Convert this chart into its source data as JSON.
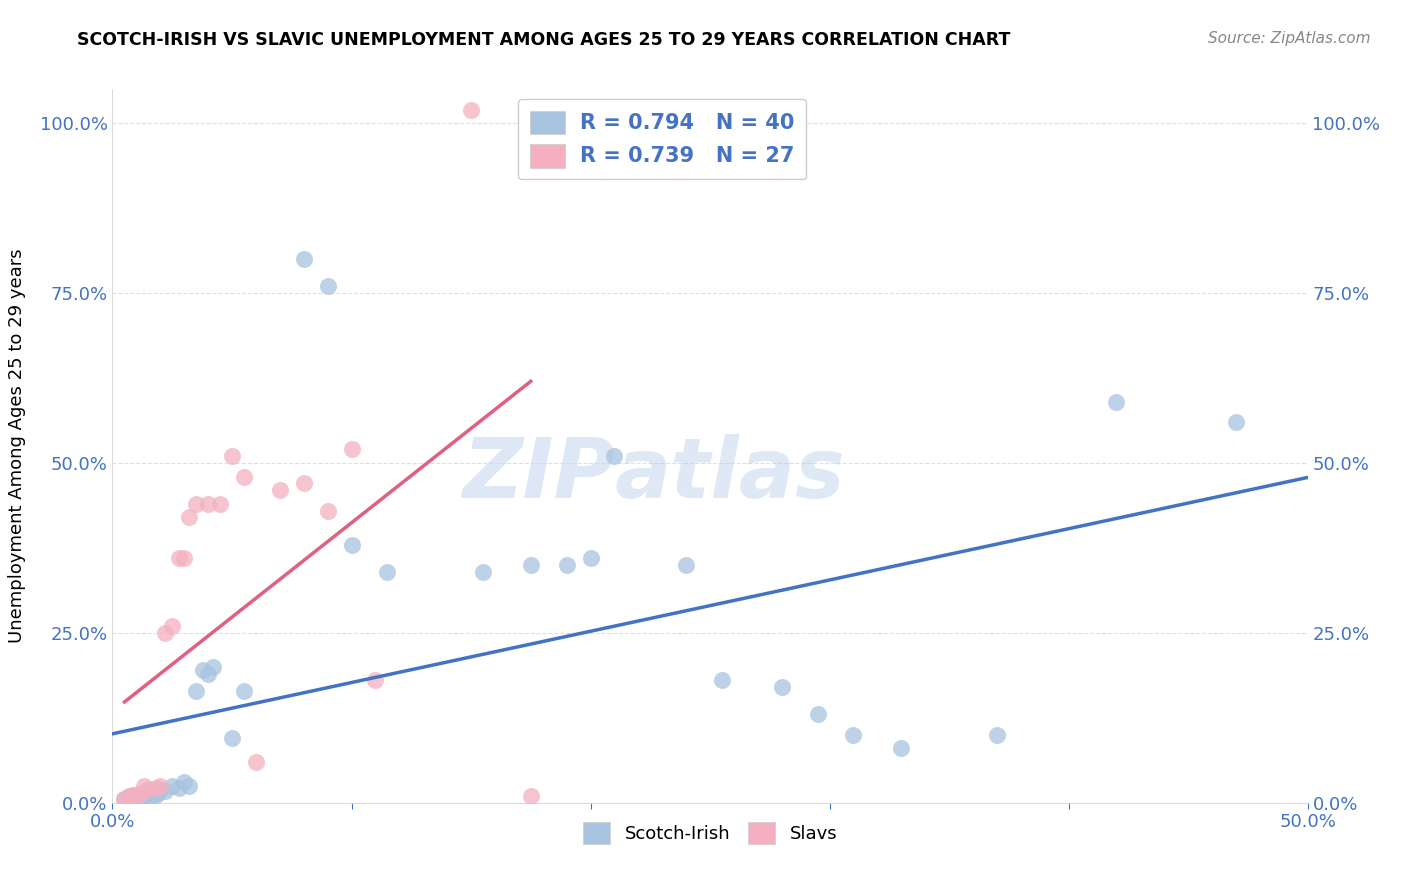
{
  "title": "SCOTCH-IRISH VS SLAVIC UNEMPLOYMENT AMONG AGES 25 TO 29 YEARS CORRELATION CHART",
  "source": "Source: ZipAtlas.com",
  "ylabel": "Unemployment Among Ages 25 to 29 years",
  "xlim": [
    0,
    0.5
  ],
  "ylim": [
    0,
    1.05
  ],
  "x_ticks": [
    0.0,
    0.1,
    0.2,
    0.3,
    0.4,
    0.5
  ],
  "x_tick_labels": [
    "0.0%",
    "",
    "",
    "",
    "",
    "50.0%"
  ],
  "y_tick_labels": [
    "0.0%",
    "25.0%",
    "50.0%",
    "75.0%",
    "100.0%"
  ],
  "y_ticks": [
    0.0,
    0.25,
    0.5,
    0.75,
    1.0
  ],
  "watermark_1": "ZIP",
  "watermark_2": "atlas",
  "scotch_irish_R": "0.794",
  "scotch_irish_N": "40",
  "slavic_R": "0.739",
  "slavic_N": "27",
  "scotch_irish_color": "#a8c4e0",
  "slavic_color": "#f4b0c0",
  "scotch_irish_line_color": "#4472c4",
  "slavic_line_color": "#e06080",
  "legend_text_color": "#4472c4",
  "scotch_irish_x": [
    0.005,
    0.007,
    0.008,
    0.01,
    0.012,
    0.013,
    0.015,
    0.016,
    0.018,
    0.019,
    0.02,
    0.022,
    0.025,
    0.028,
    0.03,
    0.032,
    0.035,
    0.038,
    0.04,
    0.042,
    0.05,
    0.055,
    0.08,
    0.09,
    0.1,
    0.115,
    0.155,
    0.175,
    0.19,
    0.2,
    0.21,
    0.24,
    0.255,
    0.28,
    0.295,
    0.31,
    0.33,
    0.37,
    0.42,
    0.47
  ],
  "scotch_irish_y": [
    0.005,
    0.01,
    0.008,
    0.012,
    0.006,
    0.01,
    0.015,
    0.008,
    0.012,
    0.015,
    0.02,
    0.018,
    0.025,
    0.022,
    0.03,
    0.025,
    0.165,
    0.195,
    0.19,
    0.2,
    0.095,
    0.165,
    0.8,
    0.76,
    0.38,
    0.34,
    0.34,
    0.35,
    0.35,
    0.36,
    0.51,
    0.35,
    0.18,
    0.17,
    0.13,
    0.1,
    0.08,
    0.1,
    0.59,
    0.56
  ],
  "slavic_x": [
    0.005,
    0.007,
    0.008,
    0.01,
    0.012,
    0.013,
    0.015,
    0.018,
    0.02,
    0.022,
    0.025,
    0.028,
    0.03,
    0.032,
    0.035,
    0.04,
    0.045,
    0.05,
    0.055,
    0.06,
    0.07,
    0.08,
    0.09,
    0.1,
    0.11,
    0.15,
    0.175
  ],
  "slavic_y": [
    0.005,
    0.008,
    0.012,
    0.01,
    0.015,
    0.025,
    0.02,
    0.022,
    0.025,
    0.25,
    0.26,
    0.36,
    0.36,
    0.42,
    0.44,
    0.44,
    0.44,
    0.51,
    0.48,
    0.06,
    0.46,
    0.47,
    0.43,
    0.52,
    0.18,
    1.02,
    0.01
  ],
  "background_color": "#ffffff",
  "grid_color": "#e0e0e0"
}
